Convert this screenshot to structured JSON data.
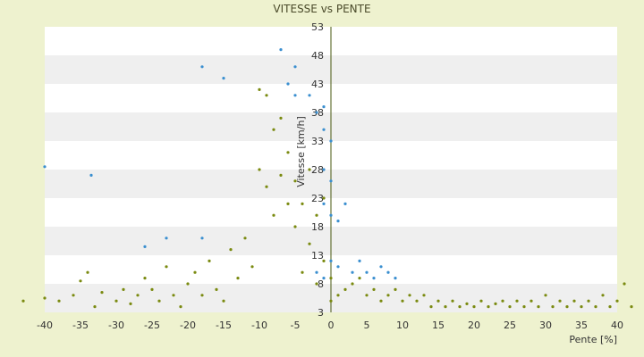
{
  "chart_data": {
    "type": "scatter",
    "title": "VITESSE vs PENTE",
    "xlabel": "Pente [%]",
    "ylabel": "Vitesse [km/h]",
    "xlim": [
      -40,
      40
    ],
    "ylim": [
      3,
      53
    ],
    "x_ticks": [
      -40,
      -35,
      -30,
      -25,
      -20,
      -15,
      -10,
      -5,
      0,
      5,
      10,
      15,
      20,
      25,
      30,
      35,
      40
    ],
    "y_ticks": [
      3,
      8,
      13,
      18,
      23,
      28,
      33,
      38,
      43,
      48,
      53
    ],
    "grid": true,
    "legend": "none",
    "colors": {
      "series_main": "#7a8a10",
      "series_highlight": "#3a8fd0",
      "plot_band_light": "#ffffff",
      "plot_band_dark": "#efefef",
      "background": "#eef2cf"
    },
    "series": [
      {
        "points": [
          [
            -43,
            5
          ],
          [
            -40,
            5.5
          ],
          [
            -38,
            5
          ],
          [
            -36,
            6
          ],
          [
            -35,
            8.5
          ],
          [
            -34,
            10
          ],
          [
            -33,
            4
          ],
          [
            -32,
            6.5
          ],
          [
            -30,
            5
          ],
          [
            -29,
            7
          ],
          [
            -28,
            4.5
          ],
          [
            -27,
            6
          ],
          [
            -26,
            9
          ],
          [
            -25,
            7
          ],
          [
            -24,
            5
          ],
          [
            -23,
            11
          ],
          [
            -22,
            6
          ],
          [
            -21,
            4
          ],
          [
            -20,
            8
          ],
          [
            -19,
            10
          ],
          [
            -18,
            6
          ],
          [
            -17,
            12
          ],
          [
            -16,
            7
          ],
          [
            -15,
            5
          ],
          [
            -14,
            14
          ],
          [
            -13,
            9
          ],
          [
            -12,
            16
          ],
          [
            -11,
            11
          ],
          [
            -10,
            28
          ],
          [
            -10,
            42
          ],
          [
            -9,
            25
          ],
          [
            -9,
            41
          ],
          [
            -8,
            35
          ],
          [
            -8,
            20
          ],
          [
            -7,
            37
          ],
          [
            -7,
            27
          ],
          [
            -6,
            31
          ],
          [
            -6,
            22
          ],
          [
            -5,
            26
          ],
          [
            -5,
            18
          ],
          [
            -4,
            22
          ],
          [
            -4,
            10
          ],
          [
            -3,
            28
          ],
          [
            -3,
            15
          ],
          [
            -2,
            20
          ],
          [
            -2,
            8
          ],
          [
            -1,
            23
          ],
          [
            -1,
            12
          ],
          [
            0,
            9
          ],
          [
            0,
            5
          ],
          [
            1,
            6
          ],
          [
            2,
            7
          ],
          [
            3,
            8
          ],
          [
            4,
            9
          ],
          [
            5,
            6
          ],
          [
            6,
            7
          ],
          [
            7,
            5
          ],
          [
            8,
            6
          ],
          [
            9,
            7
          ],
          [
            10,
            5
          ],
          [
            11,
            6
          ],
          [
            12,
            5
          ],
          [
            13,
            6
          ],
          [
            14,
            4
          ],
          [
            15,
            5
          ],
          [
            16,
            4
          ],
          [
            17,
            5
          ],
          [
            18,
            4
          ],
          [
            19,
            4.5
          ],
          [
            20,
            4
          ],
          [
            21,
            5
          ],
          [
            22,
            4
          ],
          [
            23,
            4.5
          ],
          [
            24,
            5
          ],
          [
            25,
            4
          ],
          [
            26,
            5
          ],
          [
            27,
            4
          ],
          [
            28,
            5
          ],
          [
            29,
            4
          ],
          [
            30,
            6
          ],
          [
            31,
            4
          ],
          [
            32,
            5
          ],
          [
            33,
            4
          ],
          [
            34,
            5
          ],
          [
            35,
            4
          ],
          [
            36,
            5
          ],
          [
            37,
            4
          ],
          [
            38,
            6
          ],
          [
            39,
            4
          ],
          [
            40,
            5
          ],
          [
            41,
            8
          ],
          [
            42,
            4
          ]
        ]
      },
      {
        "points": [
          [
            -40,
            28.5
          ],
          [
            -33.5,
            27
          ],
          [
            -26,
            14.5
          ],
          [
            -23,
            16
          ],
          [
            -18,
            16
          ],
          [
            -18,
            46
          ],
          [
            -15,
            44
          ],
          [
            -7,
            49
          ],
          [
            -6,
            43
          ],
          [
            -5,
            46
          ],
          [
            -5,
            41
          ],
          [
            -3,
            41
          ],
          [
            -2,
            38
          ],
          [
            -1,
            39
          ],
          [
            -1,
            35
          ],
          [
            0,
            33
          ],
          [
            -1,
            28
          ],
          [
            -1,
            22
          ],
          [
            0,
            26
          ],
          [
            0,
            20
          ],
          [
            1,
            19
          ],
          [
            2,
            22
          ],
          [
            3,
            10
          ],
          [
            4,
            12
          ],
          [
            5,
            10
          ],
          [
            6,
            9
          ],
          [
            7,
            11
          ],
          [
            8,
            10
          ],
          [
            9,
            9
          ],
          [
            0,
            12
          ],
          [
            1,
            11
          ],
          [
            -2,
            10
          ],
          [
            -1,
            9
          ]
        ]
      }
    ]
  }
}
